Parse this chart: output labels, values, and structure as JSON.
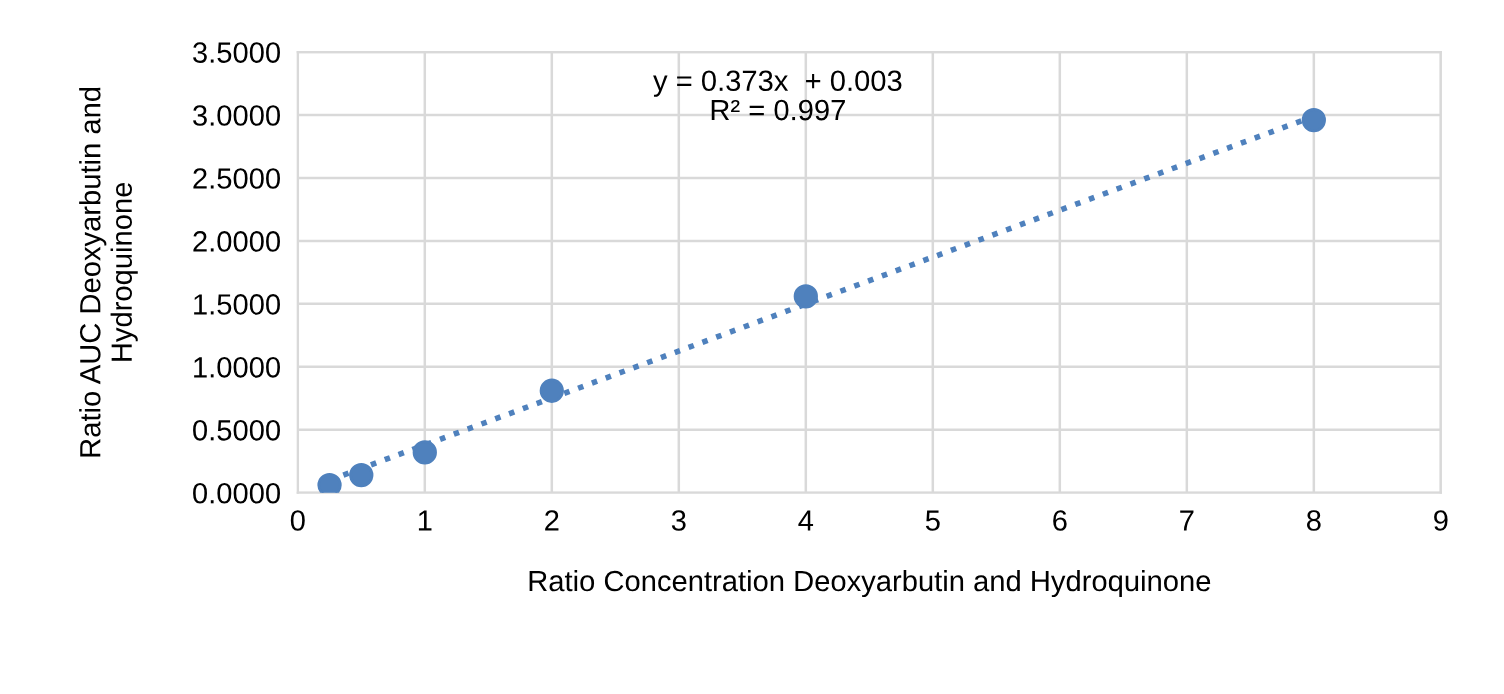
{
  "chart_data": {
    "type": "scatter",
    "xlabel": "Ratio Concentration Deoxyarbutin and Hydroquinone",
    "ylabel": "Ratio AUC Deoxyarbutin and Hydroquinone",
    "x": [
      0.25,
      0.5,
      1,
      2,
      4,
      8
    ],
    "series": [
      {
        "color": "#4f81bd",
        "marker": "circle",
        "values": [
          0.06,
          0.14,
          0.32,
          0.81,
          1.56,
          2.96
        ]
      },
      {
        "type": "line",
        "color": "#4f81bd",
        "line_style": "dotted",
        "marker": "none",
        "x": [
          0.25,
          8
        ],
        "values": [
          0.1,
          2.99
        ]
      }
    ],
    "annotations": [
      "y = 0.373x  + 0.003\nR² = 0.997"
    ],
    "xlim": [
      0,
      9
    ],
    "xticks": [
      0,
      1,
      2,
      3,
      4,
      5,
      6,
      7,
      8,
      9
    ],
    "ylim": [
      0,
      3.5
    ],
    "yticks": [
      {
        "value": 0,
        "label": "0.0000"
      },
      {
        "value": 0.5,
        "label": "0.5000"
      },
      {
        "value": 1,
        "label": "1.0000"
      },
      {
        "value": 1.5,
        "label": "1.5000"
      },
      {
        "value": 2,
        "label": "2.0000"
      },
      {
        "value": 2.5,
        "label": "2.5000"
      },
      {
        "value": 3,
        "label": "3.0000"
      },
      {
        "value": 3.5,
        "label": "3.5000"
      }
    ],
    "grid": true
  }
}
